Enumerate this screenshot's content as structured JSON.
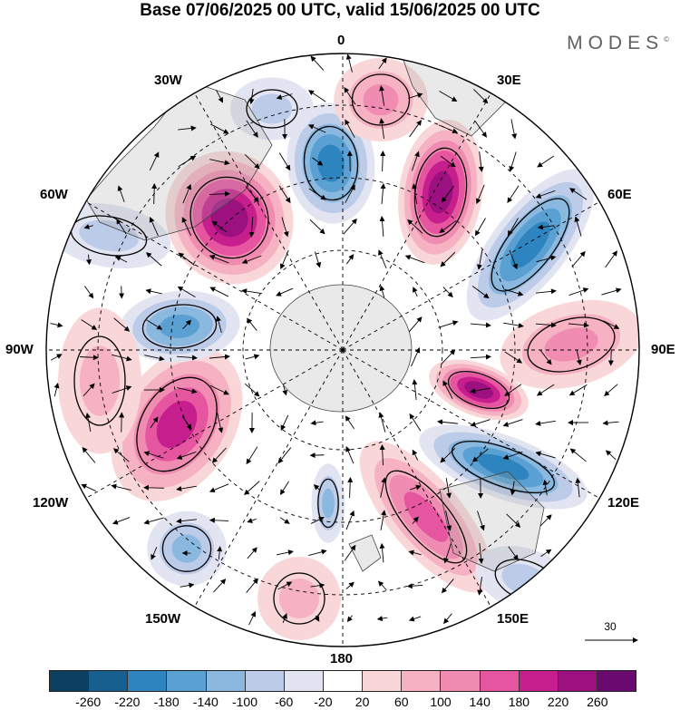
{
  "title": "Base 07/06/2025 00 UTC, valid 15/06/2025 00 UTC",
  "brand": "MODES",
  "brand_mark": "©",
  "lon_labels": {
    "l0": "0",
    "l30e": "30E",
    "l60e": "60E",
    "l90e": "90E",
    "l120e": "120E",
    "l150e": "150E",
    "l180": "180",
    "l150w": "150W",
    "l120w": "120W",
    "l90w": "90W",
    "l60w": "60W",
    "l30w": "30W"
  },
  "vector_reference": "30",
  "colorbar": {
    "colors": [
      "#0c3f60",
      "#175f8f",
      "#2d84bf",
      "#5aa0d2",
      "#8ab8df",
      "#bccbe7",
      "#e2e4f2",
      "#ffffff",
      "#f9d7d9",
      "#f6b2c2",
      "#f08cb1",
      "#e6559f",
      "#c71e8d",
      "#9c1080",
      "#6a0a6e"
    ],
    "ticks": [
      "-260",
      "-220",
      "-180",
      "-140",
      "-100",
      "-60",
      "-20",
      "20",
      "60",
      "100",
      "140",
      "180",
      "220",
      "260"
    ]
  }
}
